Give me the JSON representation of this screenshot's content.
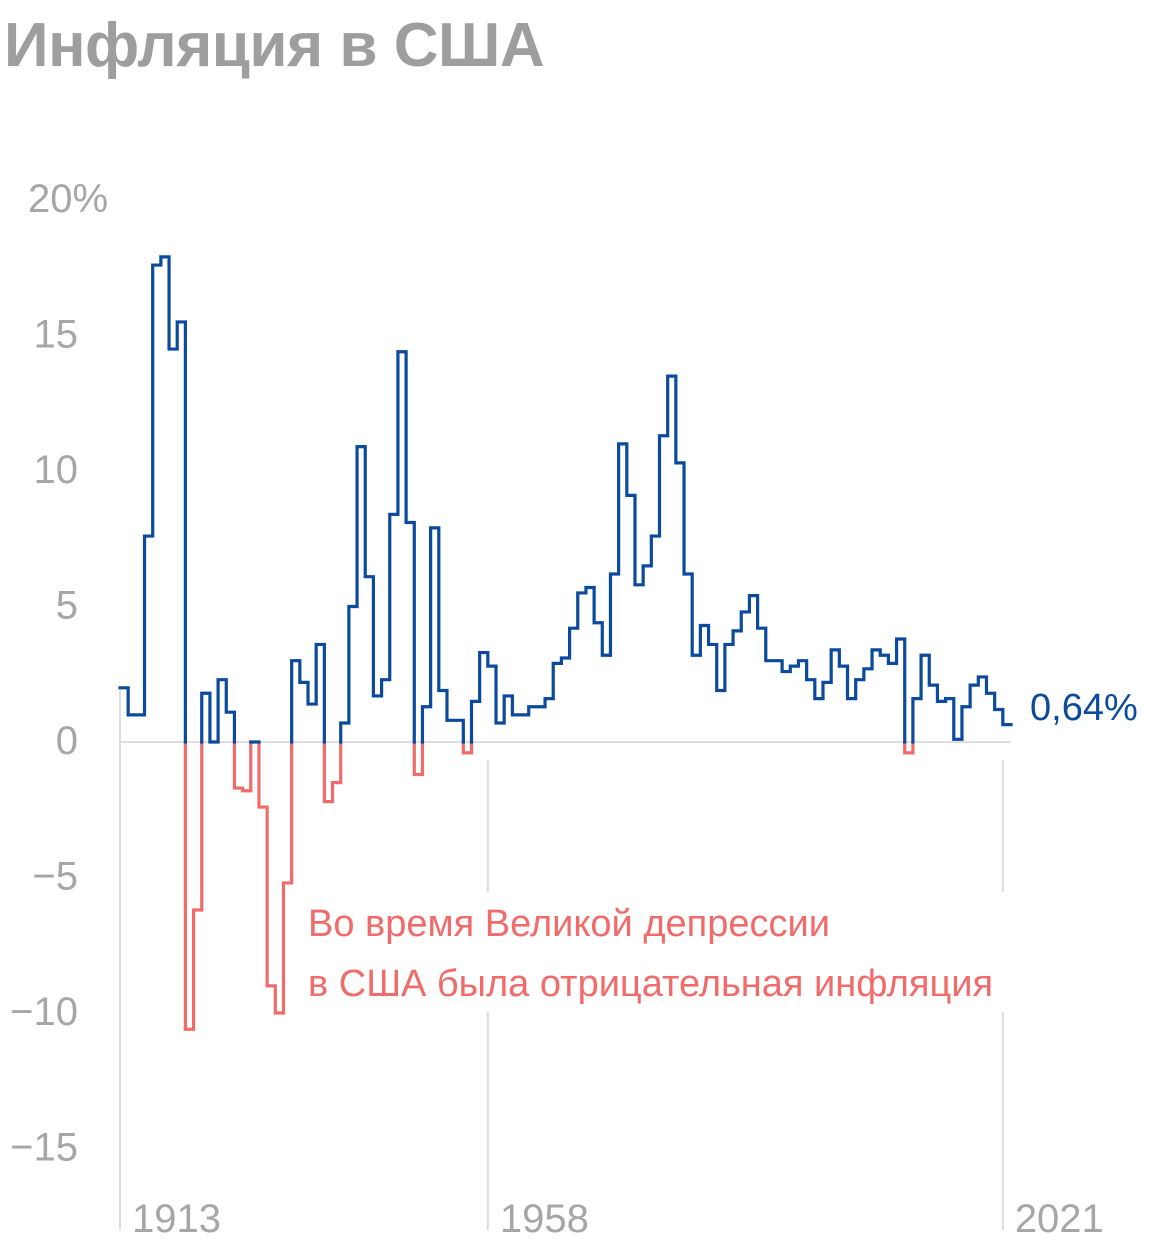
{
  "header": {
    "title": "Инфляция в США"
  },
  "chart_data": {
    "type": "line",
    "step": true,
    "title": "Инфляция в США",
    "xlabel": "",
    "ylabel": "",
    "ylim": [
      -20,
      20
    ],
    "y_ticks": [
      20,
      15,
      10,
      5,
      0,
      -5,
      -10,
      -15
    ],
    "y_tick_labels": [
      "20%",
      "15",
      "10",
      "5",
      "0",
      "−5",
      "−10",
      "−15"
    ],
    "x_ticks": [
      1913,
      1958,
      2021
    ],
    "x_tick_labels": [
      "1913",
      "1958",
      "2021"
    ],
    "grid": "vertical lines at x ticks, horizontal line at 0",
    "colors": {
      "positive": "#0b4a9c",
      "negative": "#f26b6b",
      "title": "#9e9e9e",
      "axis": "#a6a6a6",
      "grid": "#dddddd"
    },
    "end_label": "0,64%",
    "annotation": [
      "Во время Великой депрессии",
      "в США была отрицательная инфляция"
    ],
    "x": [
      1913,
      1914,
      1915,
      1916,
      1917,
      1918,
      1919,
      1920,
      1921,
      1922,
      1923,
      1924,
      1925,
      1926,
      1927,
      1928,
      1929,
      1930,
      1931,
      1932,
      1933,
      1934,
      1935,
      1936,
      1937,
      1938,
      1939,
      1940,
      1941,
      1942,
      1943,
      1944,
      1945,
      1946,
      1947,
      1948,
      1949,
      1950,
      1951,
      1952,
      1953,
      1954,
      1955,
      1956,
      1957,
      1958,
      1959,
      1960,
      1961,
      1962,
      1963,
      1964,
      1965,
      1966,
      1967,
      1968,
      1969,
      1970,
      1971,
      1972,
      1973,
      1974,
      1975,
      1976,
      1977,
      1978,
      1979,
      1980,
      1981,
      1982,
      1983,
      1984,
      1985,
      1986,
      1987,
      1988,
      1989,
      1990,
      1991,
      1992,
      1993,
      1994,
      1995,
      1996,
      1997,
      1998,
      1999,
      2000,
      2001,
      2002,
      2003,
      2004,
      2005,
      2006,
      2007,
      2008,
      2009,
      2010,
      2011,
      2012,
      2013,
      2014,
      2015,
      2016,
      2017,
      2018,
      2019,
      2020,
      2021
    ],
    "y": [
      2.0,
      1.0,
      1.0,
      7.6,
      17.6,
      17.9,
      14.5,
      15.5,
      -10.6,
      -6.2,
      1.8,
      0.0,
      2.3,
      1.1,
      -1.7,
      -1.8,
      0.0,
      -2.4,
      -9.0,
      -10.0,
      -5.2,
      3.0,
      2.2,
      1.4,
      3.6,
      -2.2,
      -1.5,
      0.7,
      5.0,
      10.9,
      6.1,
      1.7,
      2.3,
      8.4,
      14.4,
      8.1,
      -1.2,
      1.3,
      7.9,
      1.9,
      0.8,
      0.8,
      -0.4,
      1.5,
      3.3,
      2.8,
      0.7,
      1.7,
      1.0,
      1.0,
      1.3,
      1.3,
      1.6,
      2.9,
      3.1,
      4.2,
      5.5,
      5.7,
      4.4,
      3.2,
      6.2,
      11.0,
      9.1,
      5.8,
      6.5,
      7.6,
      11.3,
      13.5,
      10.3,
      6.2,
      3.2,
      4.3,
      3.6,
      1.9,
      3.6,
      4.1,
      4.8,
      5.4,
      4.2,
      3.0,
      3.0,
      2.6,
      2.8,
      3.0,
      2.3,
      1.6,
      2.2,
      3.4,
      2.8,
      1.6,
      2.3,
      2.7,
      3.4,
      3.2,
      2.9,
      3.8,
      -0.4,
      1.6,
      3.2,
      2.1,
      1.5,
      1.6,
      0.1,
      1.3,
      2.1,
      2.4,
      1.8,
      1.2,
      0.64
    ]
  }
}
